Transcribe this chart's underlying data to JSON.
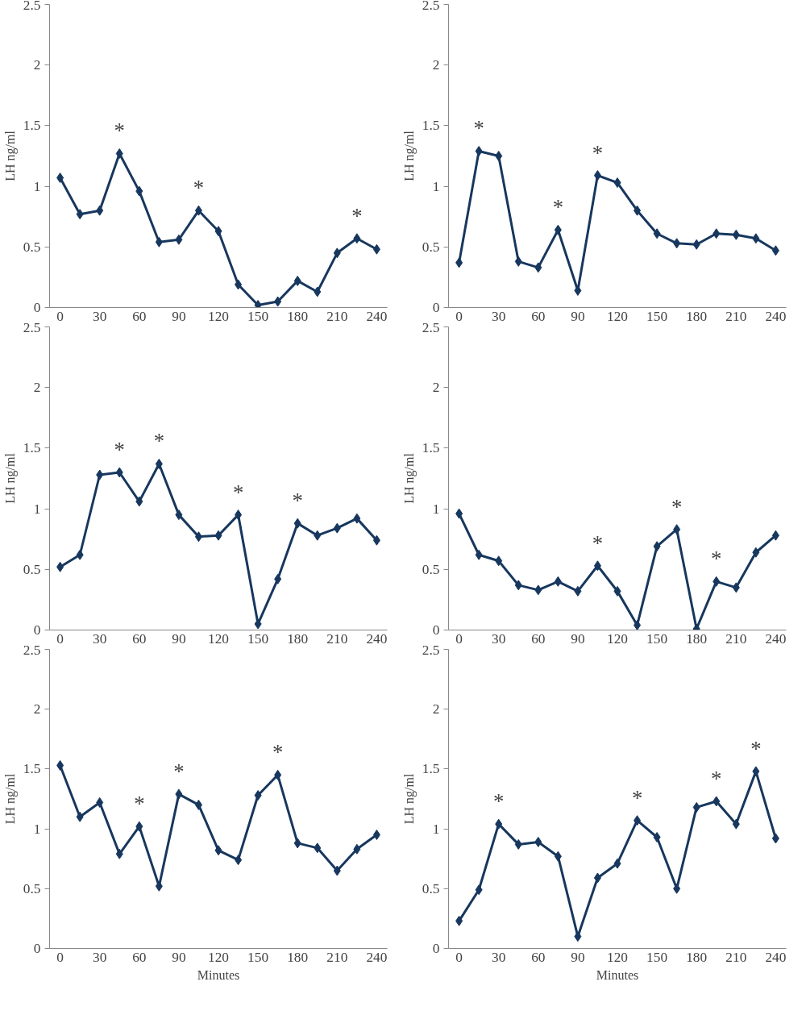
{
  "chart_data": [
    {
      "type": "line",
      "ylabel": "LH ng/ml",
      "x": [
        0,
        15,
        30,
        45,
        60,
        75,
        90,
        105,
        120,
        135,
        150,
        165,
        180,
        195,
        210,
        225,
        240
      ],
      "series": [
        {
          "color": "#17375e",
          "values": [
            1.07,
            0.77,
            0.8,
            1.27,
            0.96,
            0.54,
            0.56,
            0.8,
            0.63,
            0.19,
            0.02,
            0.05,
            0.22,
            0.13,
            0.45,
            0.57,
            0.48
          ]
        }
      ],
      "xlim": [
        -8,
        248
      ],
      "ylim": [
        0,
        2.5
      ],
      "xticks": [
        0,
        30,
        60,
        90,
        120,
        150,
        180,
        210,
        240
      ],
      "yticks": [
        0,
        0.5,
        1,
        1.5,
        2,
        2.5
      ],
      "grid": false,
      "marker": "diamond",
      "line_style": "solid",
      "annotations": [
        {
          "text": "*",
          "x": 45,
          "y": 1.27
        },
        {
          "text": "*",
          "x": 105,
          "y": 0.8
        },
        {
          "text": "*",
          "x": 225,
          "y": 0.57
        }
      ]
    },
    {
      "type": "line",
      "ylabel": "LH ng/ml",
      "x": [
        0,
        15,
        30,
        45,
        60,
        75,
        90,
        105,
        120,
        135,
        150,
        165,
        180,
        195,
        210,
        225,
        240
      ],
      "series": [
        {
          "color": "#17375e",
          "values": [
            0.37,
            1.29,
            1.25,
            0.38,
            0.33,
            0.64,
            0.14,
            1.09,
            1.03,
            0.8,
            0.61,
            0.53,
            0.52,
            0.61,
            0.6,
            0.57,
            0.47
          ]
        }
      ],
      "xlim": [
        -8,
        248
      ],
      "ylim": [
        0,
        2.5
      ],
      "xticks": [
        0,
        30,
        60,
        90,
        120,
        150,
        180,
        210,
        240
      ],
      "yticks": [
        0,
        0.5,
        1,
        1.5,
        2,
        2.5
      ],
      "grid": false,
      "marker": "diamond",
      "line_style": "solid",
      "annotations": [
        {
          "text": "*",
          "x": 15,
          "y": 1.29
        },
        {
          "text": "*",
          "x": 75,
          "y": 0.64
        },
        {
          "text": "*",
          "x": 105,
          "y": 1.09
        }
      ]
    },
    {
      "type": "line",
      "ylabel": "LH ng/ml",
      "x": [
        0,
        15,
        30,
        45,
        60,
        75,
        90,
        105,
        120,
        135,
        150,
        165,
        180,
        195,
        210,
        225,
        240
      ],
      "series": [
        {
          "color": "#17375e",
          "values": [
            0.52,
            0.62,
            1.28,
            1.3,
            1.06,
            1.37,
            0.95,
            0.77,
            0.78,
            0.95,
            0.05,
            0.42,
            0.88,
            0.78,
            0.84,
            0.92,
            0.74
          ]
        }
      ],
      "xlim": [
        -8,
        248
      ],
      "ylim": [
        0,
        2.5
      ],
      "xticks": [
        0,
        30,
        60,
        90,
        120,
        150,
        180,
        210,
        240
      ],
      "yticks": [
        0,
        0.5,
        1,
        1.5,
        2,
        2.5
      ],
      "grid": false,
      "marker": "diamond",
      "line_style": "solid",
      "annotations": [
        {
          "text": "*",
          "x": 45,
          "y": 1.3
        },
        {
          "text": "*",
          "x": 75,
          "y": 1.37
        },
        {
          "text": "*",
          "x": 135,
          "y": 0.95
        },
        {
          "text": "*",
          "x": 180,
          "y": 0.88
        }
      ]
    },
    {
      "type": "line",
      "ylabel": "LH ng/ml",
      "x": [
        0,
        15,
        30,
        45,
        60,
        75,
        90,
        105,
        120,
        135,
        150,
        165,
        180,
        195,
        210,
        225,
        240
      ],
      "series": [
        {
          "color": "#17375e",
          "values": [
            0.96,
            0.62,
            0.57,
            0.37,
            0.33,
            0.4,
            0.32,
            0.53,
            0.32,
            0.04,
            0.69,
            0.83,
            0.01,
            0.4,
            0.35,
            0.64,
            0.78
          ]
        }
      ],
      "xlim": [
        -8,
        248
      ],
      "ylim": [
        0,
        2.5
      ],
      "xticks": [
        0,
        30,
        60,
        90,
        120,
        150,
        180,
        210,
        240
      ],
      "yticks": [
        0,
        0.5,
        1,
        1.5,
        2,
        2.5
      ],
      "grid": false,
      "marker": "diamond",
      "line_style": "solid",
      "annotations": [
        {
          "text": "*",
          "x": 105,
          "y": 0.53
        },
        {
          "text": "*",
          "x": 165,
          "y": 0.83
        },
        {
          "text": "*",
          "x": 195,
          "y": 0.4
        }
      ]
    },
    {
      "type": "line",
      "ylabel": "LH ng/ml",
      "xlabel": "Minutes",
      "x": [
        0,
        15,
        30,
        45,
        60,
        75,
        90,
        105,
        120,
        135,
        150,
        165,
        180,
        195,
        210,
        225,
        240
      ],
      "series": [
        {
          "color": "#17375e",
          "values": [
            1.53,
            1.1,
            1.22,
            0.79,
            1.02,
            0.52,
            1.29,
            1.2,
            0.82,
            0.74,
            1.28,
            1.45,
            0.88,
            0.84,
            0.65,
            0.83,
            0.95
          ]
        }
      ],
      "xlim": [
        -8,
        248
      ],
      "ylim": [
        0,
        2.5
      ],
      "xticks": [
        0,
        30,
        60,
        90,
        120,
        150,
        180,
        210,
        240
      ],
      "yticks": [
        0,
        0.5,
        1,
        1.5,
        2,
        2.5
      ],
      "grid": false,
      "marker": "diamond",
      "line_style": "solid",
      "annotations": [
        {
          "text": "*",
          "x": 60,
          "y": 1.02
        },
        {
          "text": "*",
          "x": 90,
          "y": 1.29
        },
        {
          "text": "*",
          "x": 165,
          "y": 1.45
        }
      ]
    },
    {
      "type": "line",
      "ylabel": "LH ng/ml",
      "xlabel": "Minutes",
      "x": [
        0,
        15,
        30,
        45,
        60,
        75,
        90,
        105,
        120,
        135,
        150,
        165,
        180,
        195,
        210,
        225,
        240
      ],
      "series": [
        {
          "color": "#17375e",
          "values": [
            0.23,
            0.49,
            1.04,
            0.87,
            0.89,
            0.77,
            0.1,
            0.59,
            0.71,
            1.07,
            0.93,
            0.5,
            1.18,
            1.23,
            1.04,
            1.48,
            0.92
          ]
        }
      ],
      "xlim": [
        -8,
        248
      ],
      "ylim": [
        0,
        2.5
      ],
      "xticks": [
        0,
        30,
        60,
        90,
        120,
        150,
        180,
        210,
        240
      ],
      "yticks": [
        0,
        0.5,
        1,
        1.5,
        2,
        2.5
      ],
      "grid": false,
      "marker": "diamond",
      "line_style": "solid",
      "annotations": [
        {
          "text": "*",
          "x": 30,
          "y": 1.04
        },
        {
          "text": "*",
          "x": 135,
          "y": 1.07
        },
        {
          "text": "*",
          "x": 195,
          "y": 1.23
        },
        {
          "text": "*",
          "x": 225,
          "y": 1.48
        }
      ]
    }
  ]
}
